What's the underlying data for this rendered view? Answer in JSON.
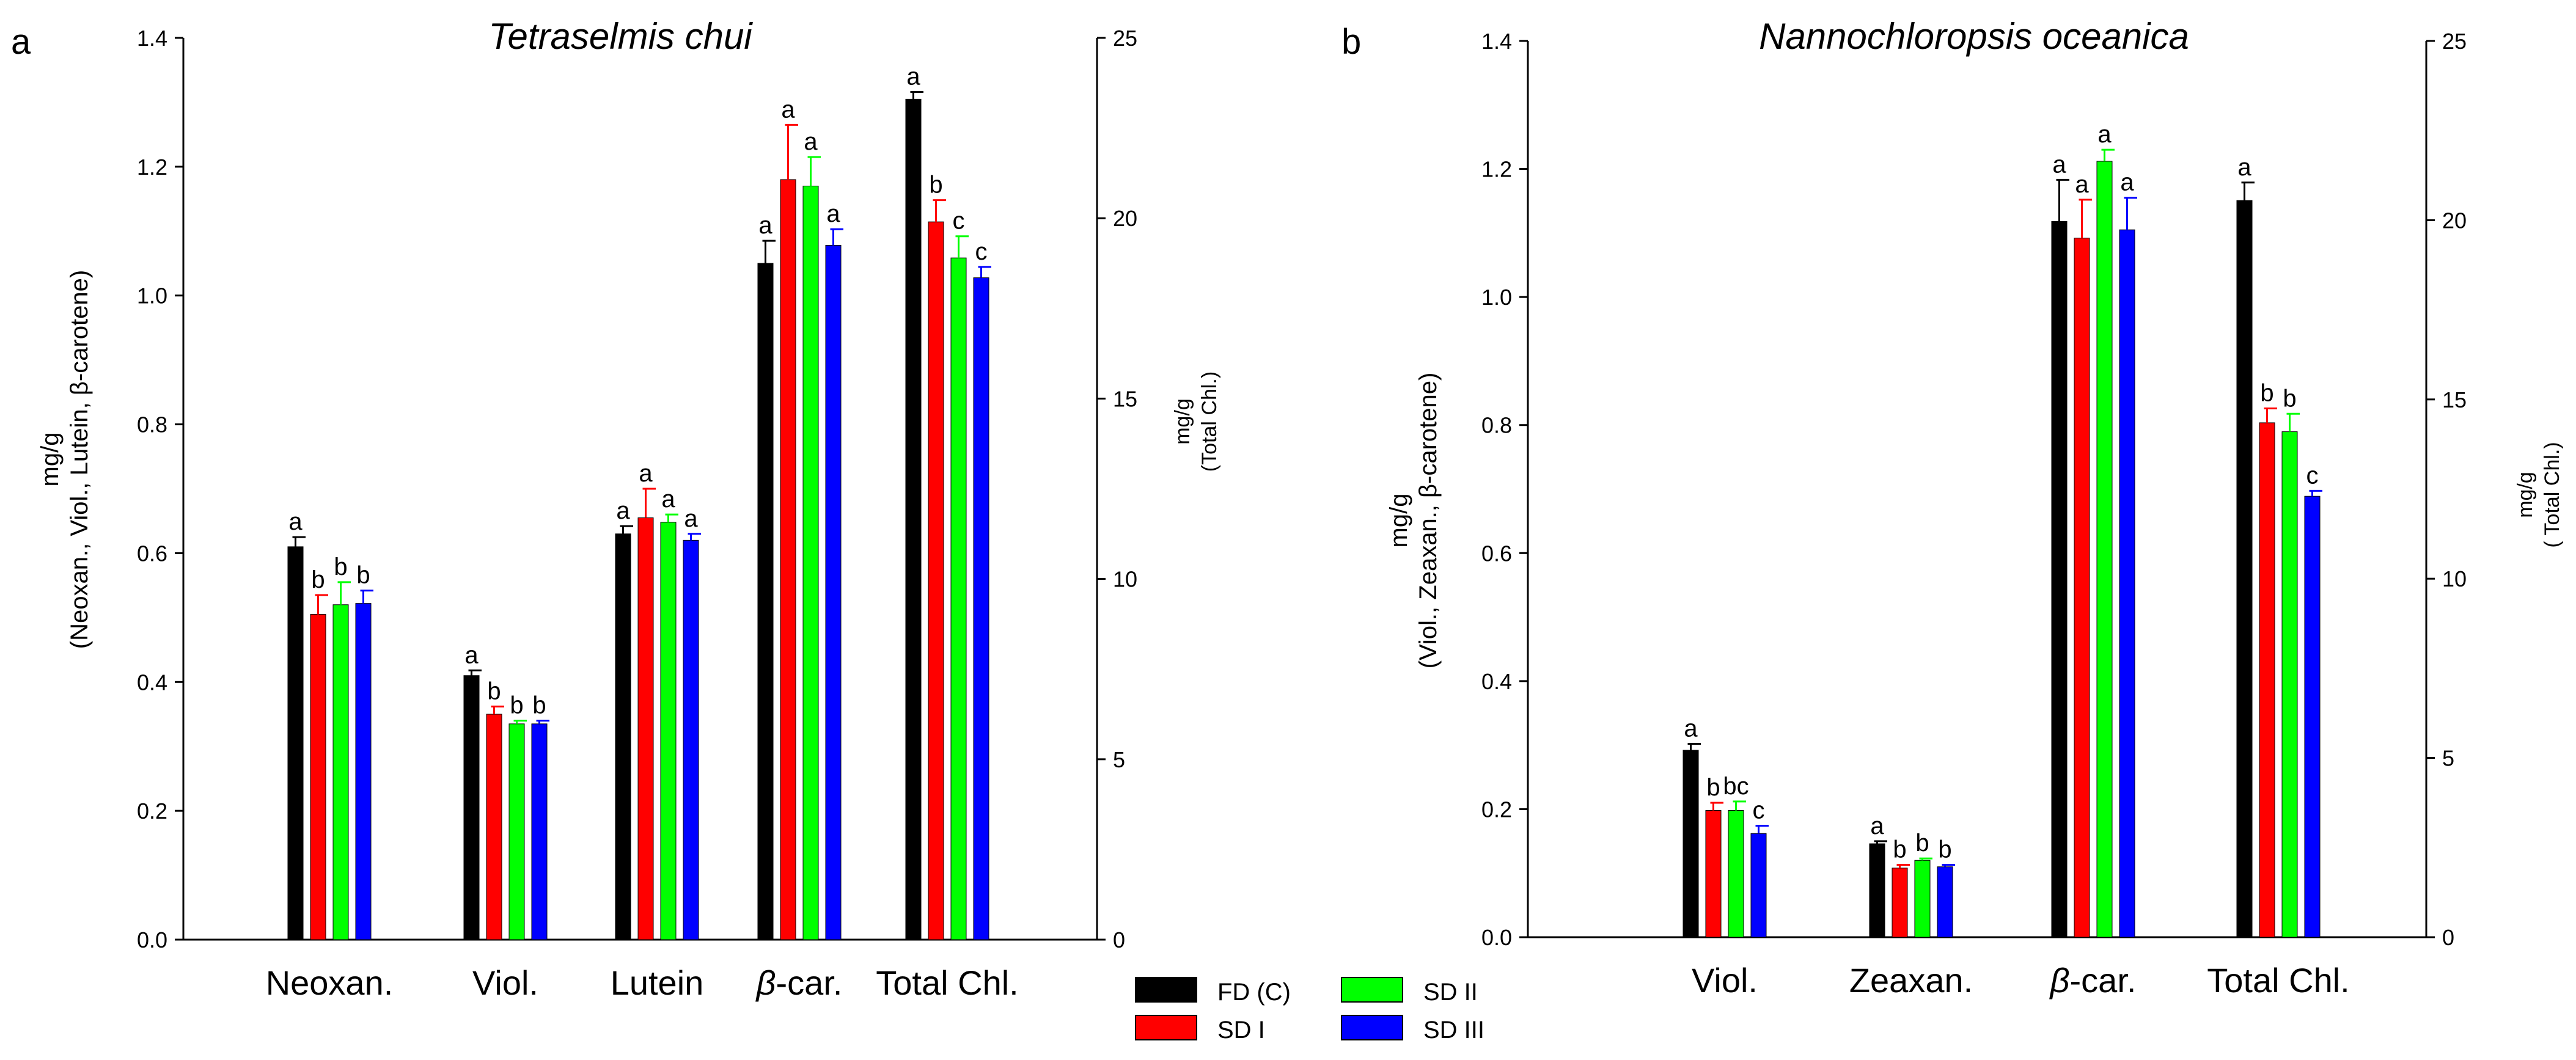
{
  "legend": [
    {
      "name": "FD (C)",
      "color": "#000000"
    },
    {
      "name": "SD I",
      "color": "#ff0000"
    },
    {
      "name": "SD II",
      "color": "#00ff00"
    },
    {
      "name": "SD III",
      "color": "#0000ff"
    }
  ],
  "chart_data": [
    {
      "type": "bar",
      "panel_label": "a",
      "title": "Tetraselmis chui",
      "ylabel_left": {
        "line1": "mg/g",
        "line2": "(Neoxan., Viol., Lutein, β-carotene)"
      },
      "ylabel_right": {
        "line1": "mg/g",
        "line2": "(Total Chl.)"
      },
      "ylim_left": [
        0,
        1.4
      ],
      "ylim_right": [
        0,
        25
      ],
      "yticks_left": [
        "0.0",
        "0.2",
        "0.4",
        "0.6",
        "0.8",
        "1.0",
        "1.2",
        "1.4"
      ],
      "yticks_right": [
        "0",
        "5",
        "10",
        "15",
        "20",
        "25"
      ],
      "categories": [
        "Neoxan.",
        "Viol.",
        "Lutein",
        "β-car.",
        "Total Chl."
      ],
      "right_axis_category_index": 4,
      "series": [
        {
          "name": "FD (C)",
          "values": [
            0.61,
            0.41,
            0.63,
            1.05,
            23.3
          ],
          "errors": [
            0.015,
            0.008,
            0.012,
            0.035,
            0.2
          ],
          "letters": [
            "a",
            "a",
            "a",
            "a",
            "a"
          ]
        },
        {
          "name": "SD I",
          "values": [
            0.505,
            0.35,
            0.655,
            1.18,
            19.9
          ],
          "errors": [
            0.03,
            0.012,
            0.045,
            0.085,
            0.6
          ],
          "letters": [
            "b",
            "b",
            "a",
            "a",
            "b"
          ]
        },
        {
          "name": "SD II",
          "values": [
            0.52,
            0.335,
            0.648,
            1.17,
            18.9
          ],
          "errors": [
            0.035,
            0.005,
            0.012,
            0.045,
            0.6
          ],
          "letters": [
            "b",
            "b",
            "a",
            "a",
            "c"
          ]
        },
        {
          "name": "SD III",
          "values": [
            0.522,
            0.335,
            0.62,
            1.078,
            18.35
          ],
          "errors": [
            0.02,
            0.005,
            0.01,
            0.025,
            0.3
          ],
          "letters": [
            "b",
            "b",
            "a",
            "a",
            "c"
          ]
        }
      ]
    },
    {
      "type": "bar",
      "panel_label": "b",
      "title": "Nannochloropsis oceanica",
      "ylabel_left": {
        "line1": "mg/g",
        "line2": "(Viol., Zeaxan., β-carotene)"
      },
      "ylabel_right": {
        "line1": "mg/g",
        "line2": "( Total Chl.)"
      },
      "ylim_left": [
        0,
        1.4
      ],
      "ylim_right": [
        0,
        25
      ],
      "yticks_left": [
        "0.0",
        "0.2",
        "0.4",
        "0.6",
        "0.8",
        "1.0",
        "1.2",
        "1.4"
      ],
      "yticks_right": [
        "0",
        "5",
        "10",
        "15",
        "20",
        "25"
      ],
      "categories": [
        "Viol.",
        "Zeaxan.",
        "β-car.",
        "Total Chl."
      ],
      "right_axis_category_index": 3,
      "series": [
        {
          "name": "FD (C)",
          "values": [
            0.292,
            0.146,
            1.118,
            20.55
          ],
          "errors": [
            0.01,
            0.004,
            0.065,
            0.5
          ],
          "letters": [
            "a",
            "a",
            "a",
            "a"
          ]
        },
        {
          "name": "SD I",
          "values": [
            0.198,
            0.108,
            1.092,
            14.35
          ],
          "errors": [
            0.012,
            0.005,
            0.06,
            0.4
          ],
          "letters": [
            "b",
            "b",
            "a",
            "b"
          ]
        },
        {
          "name": "SD II",
          "values": [
            0.198,
            0.12,
            1.212,
            14.1
          ],
          "errors": [
            0.014,
            0.003,
            0.018,
            0.5
          ],
          "letters": [
            "bc",
            "b",
            "a",
            "b"
          ]
        },
        {
          "name": "SD III",
          "values": [
            0.162,
            0.11,
            1.105,
            12.3
          ],
          "errors": [
            0.012,
            0.003,
            0.05,
            0.15
          ],
          "letters": [
            "c",
            "b",
            "a",
            "c"
          ]
        }
      ]
    }
  ]
}
